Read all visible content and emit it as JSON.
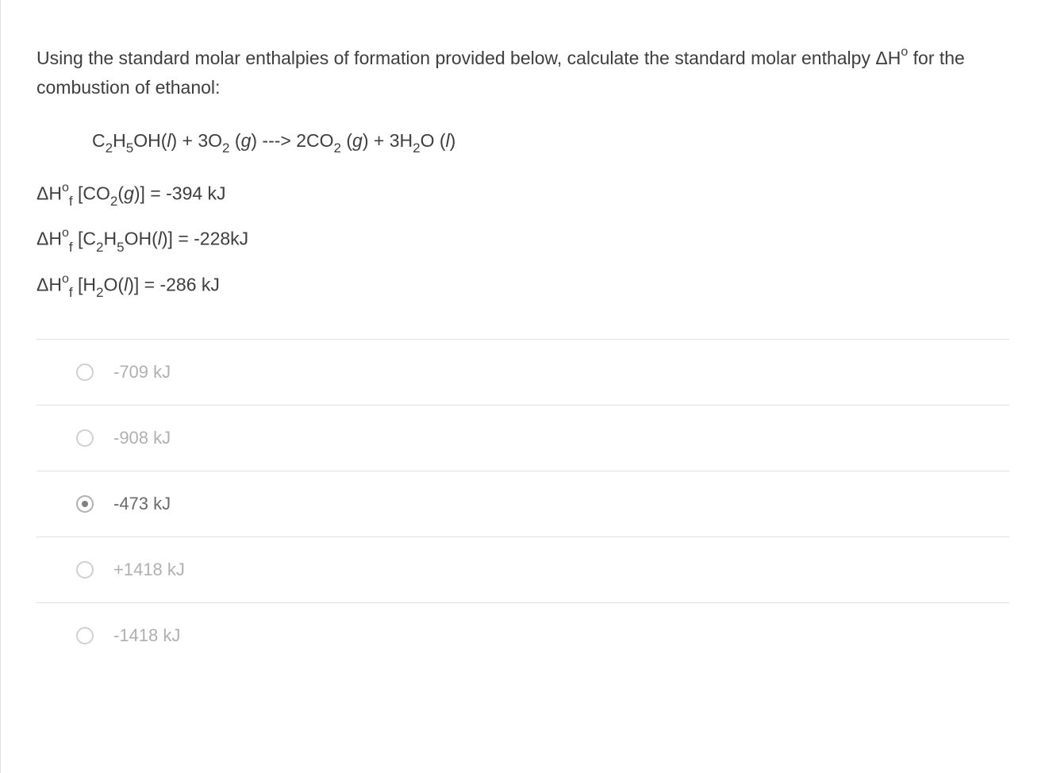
{
  "question": {
    "text_part1": "Using the standard molar enthalpies of formation provided below, calculate the standard molar enthalpy ",
    "text_part2": "H",
    "text_part3": " for the combustion of ethanol:"
  },
  "equation": {
    "reactant1_c": "C",
    "reactant1_c_sub": "2",
    "reactant1_h": "H",
    "reactant1_h_sub": "5",
    "reactant1_oh": "OH(",
    "reactant1_state": "l",
    "reactant1_close": ") + 3O",
    "reactant2_sub": "2",
    "reactant2_state_open": " (",
    "reactant2_state": "g",
    "reactant2_close": ")  --->   2CO",
    "product1_sub": "2",
    "product1_state_open": " (",
    "product1_state": "g",
    "product1_close": ") + 3H",
    "product2_sub": "2",
    "product2_o": "O (",
    "product2_state": "l",
    "product2_close": ")"
  },
  "enthalpies": [
    {
      "delta": "Δ",
      "h": "H",
      "sup": "o",
      "sub": "f",
      "bracket_open": " [CO",
      "formula_sub": "2",
      "state_open": "(",
      "state": "g",
      "close": ")] = -394 kJ"
    },
    {
      "delta": "Δ",
      "h": "H",
      "sup": "o",
      "sub": "f",
      "bracket_open": " [C",
      "c_sub": "2",
      "h_part": "H",
      "h_sub": "5",
      "oh": "OH(",
      "state": "l",
      "close": ")] = -228kJ"
    },
    {
      "delta": "Δ",
      "h": "H",
      "sup": "o",
      "sub": "f",
      "bracket_open": " [H",
      "formula_sub": "2",
      "o_part": "O(",
      "state": "l",
      "close": ")] = -286 kJ"
    }
  ],
  "options": [
    {
      "label": "-709 kJ",
      "selected": false
    },
    {
      "label": "-908 kJ",
      "selected": false
    },
    {
      "label": "-473 kJ",
      "selected": true
    },
    {
      "label": "+1418 kJ",
      "selected": false
    },
    {
      "label": "-1418 kJ",
      "selected": false
    }
  ],
  "styling": {
    "text_color": "#3e3e3e",
    "option_unselected_color": "#b0b0b0",
    "option_selected_color": "#6a6a6a",
    "border_color": "#e0e0e0",
    "radio_border": "#d0d0d0",
    "radio_selected_border": "#b0b0b0",
    "radio_dot": "#808080",
    "background": "#ffffff",
    "base_fontsize": 23,
    "option_fontsize": 22
  }
}
